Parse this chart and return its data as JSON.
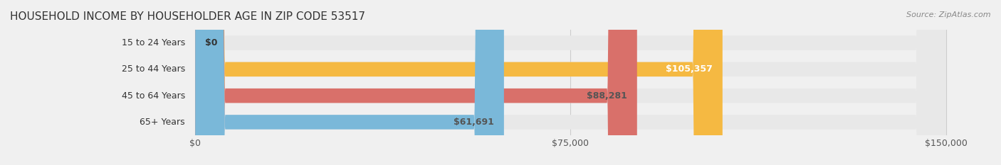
{
  "title": "HOUSEHOLD INCOME BY HOUSEHOLDER AGE IN ZIP CODE 53517",
  "source": "Source: ZipAtlas.com",
  "categories": [
    "15 to 24 Years",
    "25 to 44 Years",
    "45 to 64 Years",
    "65+ Years"
  ],
  "values": [
    0,
    105357,
    88281,
    61691
  ],
  "bar_colors": [
    "#f4a0b0",
    "#f5b942",
    "#d9706a",
    "#7ab8d9"
  ],
  "label_colors": [
    "#555555",
    "#ffffff",
    "#555555",
    "#555555"
  ],
  "value_labels": [
    "$0",
    "$105,357",
    "$88,281",
    "$61,691"
  ],
  "x_ticks": [
    0,
    75000,
    150000
  ],
  "x_tick_labels": [
    "$0",
    "$75,000",
    "$150,000"
  ],
  "xlim": [
    0,
    150000
  ],
  "bar_height": 0.55,
  "background_color": "#f0f0f0",
  "bar_bg_color": "#e8e8e8",
  "title_fontsize": 11,
  "label_fontsize": 9,
  "value_fontsize": 9,
  "tick_fontsize": 9
}
